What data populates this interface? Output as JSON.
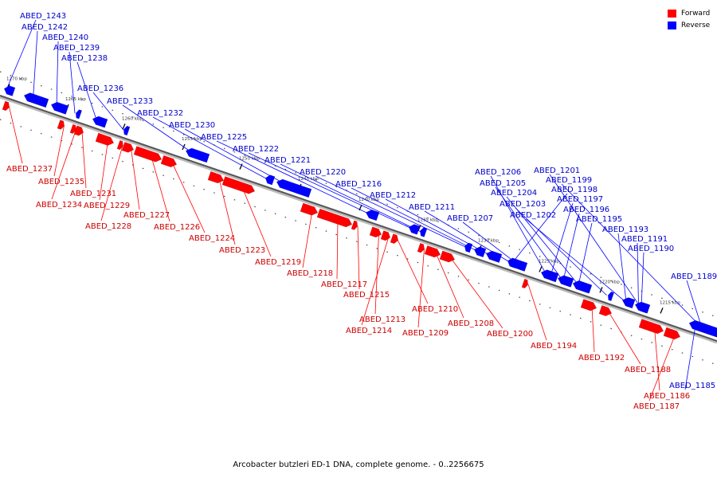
{
  "legend": {
    "forward": {
      "label": "Forward",
      "color": "#ff0000"
    },
    "reverse": {
      "label": "Reverse",
      "color": "#0000ff"
    }
  },
  "caption": "Arcobacter butzleri ED-1 DNA, complete genome. - 0..2256675",
  "scale_labels": [
    "1270 kbp",
    "1265 kbp",
    "1260 kbp",
    "1255 kbp",
    "1250 kbp",
    "1245 kbp",
    "1240 kbp",
    "1235 kbp",
    "1230 kbp",
    "1225 kbp",
    "1220 kbp",
    "1215 kbp"
  ],
  "forward_genes": [
    "ABED_1237",
    "ABED_1235",
    "ABED_1234",
    "ABED_1231",
    "ABED_1229",
    "ABED_1228",
    "ABED_1227",
    "ABED_1226",
    "ABED_1224",
    "ABED_1223",
    "ABED_1219",
    "ABED_1218",
    "ABED_1217",
    "ABED_1215",
    "ABED_1213",
    "ABED_1214",
    "ABED_1210",
    "ABED_1209",
    "ABED_1208",
    "ABED_1200",
    "ABED_1194",
    "ABED_1192",
    "ABED_1188",
    "ABED_1186",
    "ABED_1187"
  ],
  "reverse_genes": [
    "ABED_1243",
    "ABED_1242",
    "ABED_1240",
    "ABED_1239",
    "ABED_1238",
    "ABED_1236",
    "ABED_1233",
    "ABED_1232",
    "ABED_1230",
    "ABED_1225",
    "ABED_1222",
    "ABED_1221",
    "ABED_1220",
    "ABED_1216",
    "ABED_1212",
    "ABED_1211",
    "ABED_1207",
    "ABED_1206",
    "ABED_1205",
    "ABED_1204",
    "ABED_1203",
    "ABED_1202",
    "ABED_1201",
    "ABED_1199",
    "ABED_1198",
    "ABED_1197",
    "ABED_1196",
    "ABED_1195",
    "ABED_1193",
    "ABED_1191",
    "ABED_1190",
    "ABED_1189",
    "ABED_1185"
  ]
}
